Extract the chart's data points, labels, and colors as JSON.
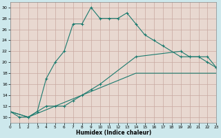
{
  "title": "",
  "xlabel": "Humidex (Indice chaleur)",
  "bg_outer": "#cde8ec",
  "bg_inner": "#e8d8d0",
  "grid_color": "#c8a8a0",
  "line_color": "#1a7a6e",
  "line1_x": [
    0,
    1,
    2,
    3,
    4,
    5,
    6,
    7,
    8,
    9,
    10,
    11,
    12,
    13,
    14,
    15,
    16,
    17,
    19,
    20,
    21,
    22,
    23
  ],
  "line1_y": [
    11,
    10,
    10,
    11,
    17,
    20,
    22,
    27,
    27,
    30,
    28,
    28,
    28,
    29,
    27,
    25,
    24,
    23,
    21,
    21,
    21,
    21,
    19
  ],
  "line2_x": [
    0,
    2,
    3,
    4,
    5,
    6,
    7,
    8,
    9,
    10,
    14,
    19,
    20,
    21,
    22,
    23
  ],
  "line2_y": [
    11,
    10,
    11,
    12,
    12,
    12,
    13,
    14,
    15,
    16,
    21,
    22,
    21,
    21,
    20,
    19
  ],
  "line3_x": [
    0,
    2,
    14,
    23
  ],
  "line3_y": [
    11,
    10,
    18,
    18
  ],
  "xlim": [
    0,
    23
  ],
  "ylim": [
    9,
    31
  ],
  "yticks": [
    10,
    12,
    14,
    16,
    18,
    20,
    22,
    24,
    26,
    28,
    30
  ],
  "xticks": [
    0,
    1,
    2,
    3,
    4,
    5,
    6,
    7,
    8,
    9,
    10,
    11,
    12,
    13,
    14,
    15,
    16,
    17,
    18,
    19,
    20,
    21,
    22,
    23
  ]
}
